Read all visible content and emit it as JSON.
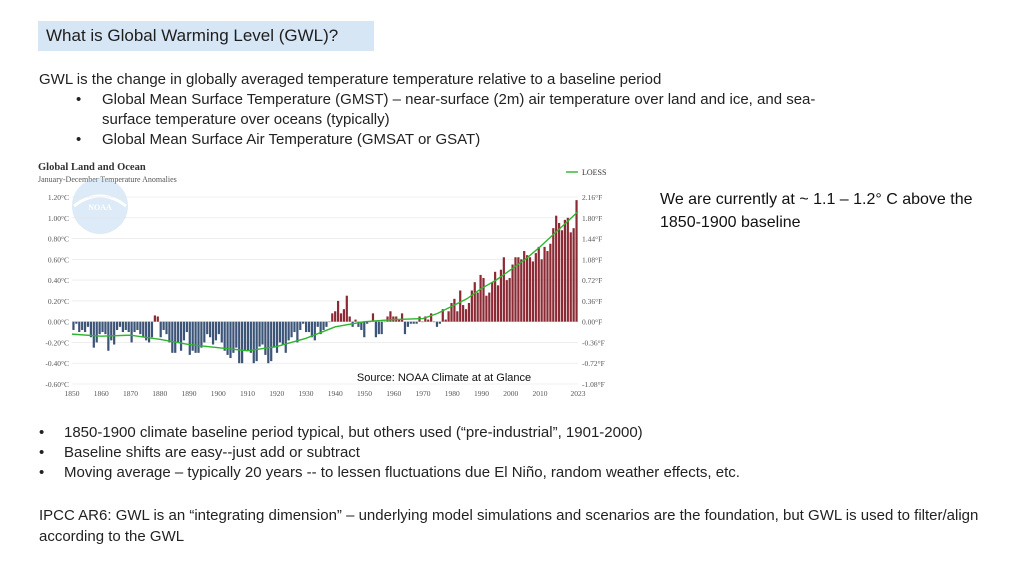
{
  "slide": {
    "title": "What is Global Warming Level (GWL)?",
    "intro": "GWL is the change in globally averaged temperature temperature relative to a baseline period",
    "bullets_top": [
      "Global Mean Surface Temperature (GMST) – near-surface (2m) air temperature over land and ice, and sea-",
      "surface temperature over oceans (typically)",
      "Global Mean Surface Air Temperature (GMSAT or GSAT)"
    ],
    "bullet_symbol": "•",
    "side_note": "We are currently at ~ 1.1 – 1.2° C above the 1850-1900 baseline",
    "bullets_bottom": [
      "1850-1900 climate baseline period typical, but others used (“pre-industrial”, 1901-2000)",
      "Baseline shifts are easy--just add or subtract",
      "Moving average – typically 20 years -- to lessen fluctuations due El Niño, random weather effects, etc."
    ],
    "ipcc": "IPCC AR6:    GWL is an “integrating dimension” – underlying model simulations and scenarios are the foundation, but GWL is used to filter/align according to the GWL",
    "source": "Source: NOAA Climate at at Glance"
  },
  "chart_data": {
    "type": "bar",
    "title": "Global Land and Ocean",
    "subtitle": "January-December Temperature Anomalies",
    "logo_text": "NOAA",
    "legend": "LOESS",
    "legend_position": "top-right",
    "x_start": 1850,
    "x_end": 2023,
    "xlim": [
      1850,
      2023
    ],
    "ylim": [
      -0.6,
      1.2
    ],
    "x_ticks": [
      "1850",
      "1860",
      "1870",
      "1880",
      "1890",
      "1900",
      "1910",
      "1920",
      "1930",
      "1940",
      "1950",
      "1960",
      "1970",
      "1980",
      "1990",
      "2000",
      "2010",
      "2023"
    ],
    "x_tick_values": [
      1850,
      1860,
      1870,
      1880,
      1890,
      1900,
      1910,
      1920,
      1930,
      1940,
      1950,
      1960,
      1970,
      1980,
      1990,
      2000,
      2010,
      2023
    ],
    "y_ticks_left": [
      "-0.60°C",
      "-0.40°C",
      "-0.20°C",
      "0.00°C",
      "0.20°C",
      "0.40°C",
      "0.60°C",
      "0.80°C",
      "1.00°C",
      "1.20°C"
    ],
    "y_tick_values": [
      -0.6,
      -0.4,
      -0.2,
      0,
      0.2,
      0.4,
      0.6,
      0.8,
      1.0,
      1.2
    ],
    "y_ticks_right": [
      "-1.08°F",
      "-0.72°F",
      "-0.36°F",
      "0.00°F",
      "0.36°F",
      "0.72°F",
      "1.08°F",
      "1.44°F",
      "1.80°F",
      "2.16°F"
    ],
    "colors": {
      "positive": "#8b2a34",
      "negative": "#3b5478",
      "loess": "#2fb52f",
      "grid": "#e4e4e4",
      "axis_text": "#555555"
    },
    "values": [
      -0.08,
      -0.02,
      -0.1,
      -0.08,
      -0.1,
      -0.05,
      -0.15,
      -0.25,
      -0.2,
      -0.12,
      -0.1,
      -0.12,
      -0.28,
      -0.18,
      -0.22,
      -0.08,
      -0.05,
      -0.1,
      -0.08,
      -0.1,
      -0.2,
      -0.1,
      -0.08,
      -0.12,
      -0.15,
      -0.18,
      -0.2,
      -0.15,
      0.06,
      0.05,
      -0.15,
      -0.08,
      -0.12,
      -0.2,
      -0.3,
      -0.3,
      -0.2,
      -0.28,
      -0.18,
      -0.1,
      -0.32,
      -0.28,
      -0.3,
      -0.3,
      -0.25,
      -0.2,
      -0.12,
      -0.15,
      -0.22,
      -0.18,
      -0.12,
      -0.2,
      -0.28,
      -0.32,
      -0.35,
      -0.3,
      -0.25,
      -0.4,
      -0.4,
      -0.28,
      -0.28,
      -0.3,
      -0.4,
      -0.38,
      -0.24,
      -0.22,
      -0.32,
      -0.4,
      -0.38,
      -0.25,
      -0.3,
      -0.2,
      -0.22,
      -0.3,
      -0.18,
      -0.15,
      -0.1,
      -0.2,
      -0.08,
      -0.02,
      -0.1,
      -0.1,
      -0.15,
      -0.18,
      -0.05,
      -0.12,
      -0.08,
      -0.05,
      0.0,
      0.08,
      0.1,
      0.2,
      0.08,
      0.12,
      0.25,
      0.05,
      -0.05,
      0.02,
      -0.05,
      -0.08,
      -0.15,
      -0.02,
      0.0,
      0.08,
      -0.15,
      -0.12,
      -0.12,
      0.0,
      0.05,
      0.1,
      0.05,
      0.05,
      0.02,
      0.08,
      -0.12,
      -0.05,
      -0.02,
      -0.02,
      -0.02,
      0.05,
      0.0,
      0.05,
      0.02,
      0.08,
      0.0,
      -0.05,
      -0.02,
      0.12,
      0.02,
      0.1,
      0.18,
      0.22,
      0.1,
      0.3,
      0.16,
      0.12,
      0.18,
      0.3,
      0.38,
      0.28,
      0.45,
      0.42,
      0.25,
      0.28,
      0.38,
      0.48,
      0.35,
      0.5,
      0.62,
      0.4,
      0.42,
      0.55,
      0.62,
      0.62,
      0.6,
      0.68,
      0.64,
      0.62,
      0.58,
      0.66,
      0.72,
      0.6,
      0.72,
      0.68,
      0.75,
      0.9,
      1.02,
      0.95,
      0.88,
      0.98,
      1.0,
      0.86,
      0.9,
      1.17
    ],
    "loess": [
      [
        1850,
        -0.12
      ],
      [
        1860,
        -0.14
      ],
      [
        1870,
        -0.13
      ],
      [
        1880,
        -0.17
      ],
      [
        1890,
        -0.22
      ],
      [
        1900,
        -0.25
      ],
      [
        1910,
        -0.28
      ],
      [
        1920,
        -0.24
      ],
      [
        1930,
        -0.16
      ],
      [
        1940,
        -0.05
      ],
      [
        1950,
        0.0
      ],
      [
        1960,
        0.02
      ],
      [
        1970,
        0.03
      ],
      [
        1975,
        0.08
      ],
      [
        1980,
        0.15
      ],
      [
        1985,
        0.22
      ],
      [
        1990,
        0.32
      ],
      [
        1995,
        0.4
      ],
      [
        2000,
        0.5
      ],
      [
        2005,
        0.6
      ],
      [
        2010,
        0.72
      ],
      [
        2015,
        0.85
      ],
      [
        2020,
        0.98
      ],
      [
        2023,
        1.06
      ]
    ]
  }
}
